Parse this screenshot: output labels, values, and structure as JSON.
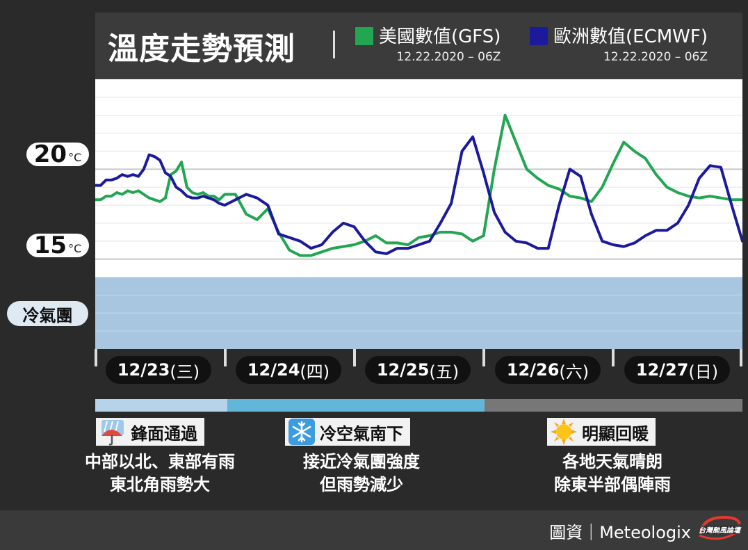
{
  "header": {
    "title": "溫度走勢預測",
    "legend": [
      {
        "name": "美國數值(GFS)",
        "date": "12.22.2020 – 06Z",
        "color": "#22a652"
      },
      {
        "name": "歐洲數值(ECMWF)",
        "date": "12.22.2020 – 06Z",
        "color": "#1c1a9c"
      }
    ]
  },
  "y_labels": {
    "t20": {
      "value": "20",
      "unit": "°C"
    },
    "t15": {
      "value": "15",
      "unit": "°C"
    },
    "cold": "冷氣團"
  },
  "dates": [
    {
      "day": "12/23",
      "weekday": "(三)"
    },
    {
      "day": "12/24",
      "weekday": "(四)"
    },
    {
      "day": "12/25",
      "weekday": "(五)"
    },
    {
      "day": "12/26",
      "weekday": "(六)"
    },
    {
      "day": "12/27",
      "weekday": "(日)"
    }
  ],
  "phases": [
    {
      "title": "鋒面通過",
      "icon": "umbrella-rain-icon",
      "lines": [
        "中部以北、東部有雨",
        "東北角雨勢大"
      ],
      "color": "#b7d3ea"
    },
    {
      "title": "冷空氣南下",
      "icon": "snowflake-icon",
      "lines": [
        "接近冷氣團強度",
        "但雨勢減少"
      ],
      "color": "#62b6d9"
    },
    {
      "title": "明顯回暖",
      "icon": "sun-icon",
      "lines": [
        "各地天氣晴朗",
        "除東半部偶陣雨"
      ],
      "color": "#777777"
    }
  ],
  "footer": {
    "credit": "圖資｜Meteologix"
  },
  "chart_data": {
    "type": "line",
    "ylim": [
      10.0,
      25.0
    ],
    "xlim": [
      0,
      120
    ],
    "cold_air_mass_max": 14.0,
    "grid_y": [
      15,
      16,
      17,
      18,
      19,
      20,
      21,
      22,
      23,
      24
    ],
    "series": [
      {
        "name": "美國數值(GFS)",
        "color": "#22a652",
        "x": [
          0,
          1,
          2,
          3,
          4,
          5,
          6,
          7,
          8,
          9,
          10,
          11,
          12,
          13,
          14,
          15,
          16,
          17,
          18,
          19,
          20,
          21,
          22,
          23,
          24,
          26,
          28,
          30,
          32,
          34,
          36,
          38,
          40,
          42,
          44,
          46,
          48,
          50,
          52,
          54,
          56,
          58,
          60,
          62,
          64,
          66,
          68,
          70,
          72,
          74,
          76,
          78,
          80,
          82,
          84,
          86,
          88,
          90,
          92,
          94,
          96,
          98,
          100,
          102,
          104,
          106,
          108,
          110,
          112,
          114,
          116,
          118,
          120
        ],
        "y": [
          18.3,
          18.3,
          18.5,
          18.5,
          18.7,
          18.6,
          18.8,
          18.7,
          18.8,
          18.6,
          18.4,
          18.3,
          18.2,
          18.4,
          19.7,
          19.9,
          20.4,
          19.0,
          18.7,
          18.6,
          18.7,
          18.5,
          18.5,
          18.3,
          18.6,
          18.6,
          17.5,
          17.2,
          17.8,
          16.5,
          15.5,
          15.2,
          15.2,
          15.4,
          15.6,
          15.7,
          15.8,
          16.0,
          16.3,
          15.9,
          15.9,
          15.8,
          16.2,
          16.3,
          16.5,
          16.5,
          16.4,
          16.0,
          16.3,
          20.0,
          23.0,
          21.5,
          20.0,
          19.5,
          19.1,
          18.9,
          18.5,
          18.4,
          18.2,
          19.0,
          20.3,
          21.5,
          21.0,
          20.6,
          19.7,
          19.0,
          18.7,
          18.5,
          18.4,
          18.5,
          18.4,
          18.3,
          18.3
        ]
      },
      {
        "name": "歐洲數值(ECMWF)",
        "color": "#1c1a9c",
        "x": [
          0,
          1,
          2,
          3,
          4,
          5,
          6,
          7,
          8,
          9,
          10,
          11,
          12,
          13,
          14,
          15,
          16,
          17,
          18,
          19,
          20,
          21,
          22,
          23,
          24,
          26,
          28,
          30,
          32,
          34,
          36,
          38,
          40,
          42,
          44,
          46,
          48,
          50,
          52,
          54,
          56,
          58,
          60,
          62,
          64,
          66,
          68,
          70,
          72,
          74,
          76,
          78,
          80,
          82,
          84,
          86,
          88,
          90,
          92,
          94,
          96,
          98,
          100,
          102,
          104,
          106,
          108,
          110,
          112,
          114,
          116,
          118,
          120
        ],
        "y": [
          19.1,
          19.1,
          19.4,
          19.4,
          19.5,
          19.7,
          19.6,
          19.7,
          19.6,
          20.0,
          20.8,
          20.7,
          20.5,
          19.8,
          19.6,
          19.0,
          18.8,
          18.5,
          18.4,
          18.4,
          18.5,
          18.4,
          18.3,
          18.1,
          18.0,
          18.3,
          18.6,
          18.4,
          18.0,
          16.4,
          16.2,
          16.0,
          15.6,
          15.8,
          16.5,
          17.0,
          16.8,
          16.0,
          15.4,
          15.3,
          15.6,
          15.6,
          15.8,
          16.0,
          17.0,
          18.1,
          21.0,
          21.8,
          19.8,
          17.6,
          16.5,
          16.0,
          15.9,
          15.6,
          15.6,
          18.0,
          20.0,
          19.6,
          17.5,
          16.0,
          15.8,
          15.7,
          15.9,
          16.3,
          16.6,
          16.6,
          17.0,
          18.0,
          19.5,
          20.2,
          20.1,
          18.0,
          16.0
        ]
      }
    ]
  }
}
